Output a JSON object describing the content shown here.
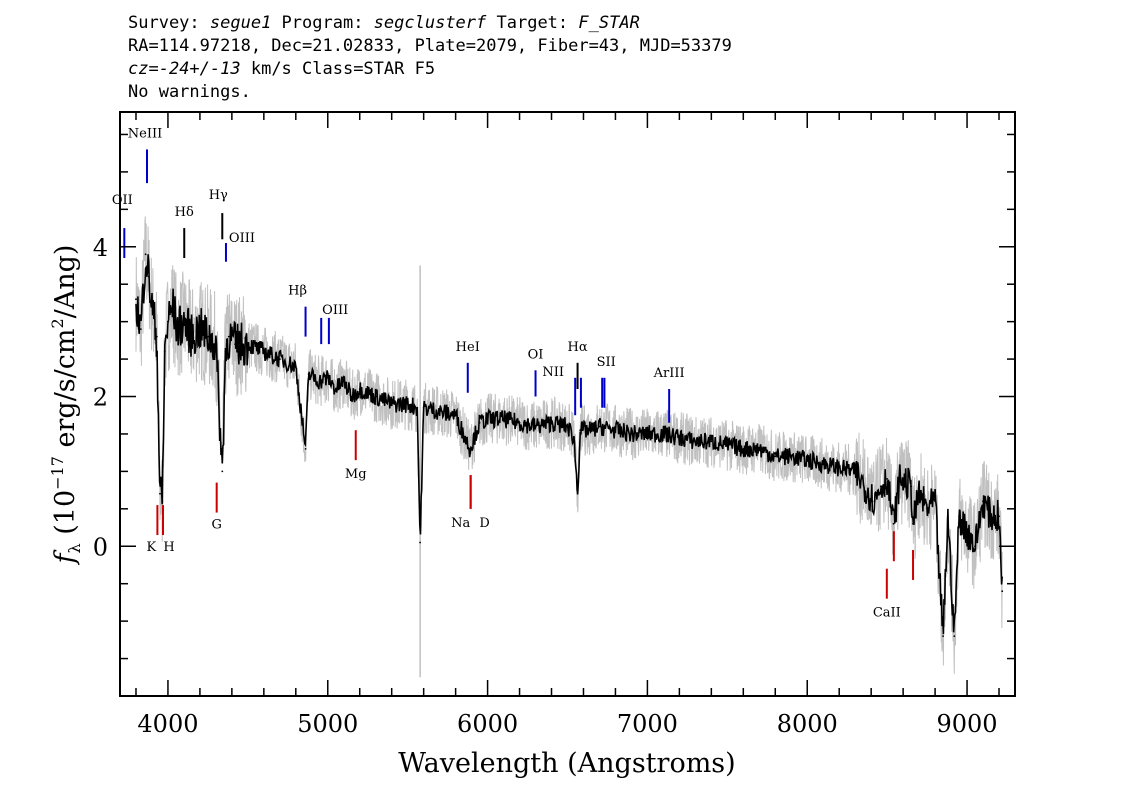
{
  "header": {
    "line1": {
      "survey_label": "Survey: ",
      "survey": "segue1",
      "program_label": " Program: ",
      "program": "segclusterf",
      "target_label": " Target: ",
      "target": "F_STAR"
    },
    "line2": "RA=114.97218, Dec=21.02833, Plate=2079, Fiber=43, MJD=53379",
    "line3": {
      "cz_label": "cz=",
      "cz": "-24+/-13",
      "rest": " km/s Class=STAR F5"
    },
    "line4": "No warnings."
  },
  "chart_data": {
    "type": "line",
    "xlabel": "Wavelength (Angstroms)",
    "ylabel": "fλ (10^-17 erg/s/cm^2/Ang)",
    "xlim": [
      3700,
      9300
    ],
    "ylim": [
      -2.0,
      5.8
    ],
    "x_ticks": [
      4000,
      5000,
      6000,
      7000,
      8000,
      9000
    ],
    "y_ticks": [
      0,
      2,
      4
    ],
    "grid": false,
    "series": [
      {
        "color": "#000000",
        "x": [
          3800,
          3830,
          3860,
          3880,
          3900,
          3930,
          3950,
          3965,
          3980,
          4000,
          4030,
          4060,
          4100,
          4150,
          4200,
          4250,
          4300,
          4340,
          4360,
          4380,
          4420,
          4500,
          4600,
          4700,
          4800,
          4861,
          4880,
          4950,
          5000,
          5050,
          5100,
          5150,
          5200,
          5300,
          5400,
          5500,
          5560,
          5578,
          5600,
          5700,
          5800,
          5890,
          5950,
          6000,
          6100,
          6200,
          6300,
          6400,
          6500,
          6540,
          6563,
          6580,
          6650,
          6700,
          6800,
          6900,
          7000,
          7100,
          7200,
          7300,
          7400,
          7500,
          7600,
          7700,
          7800,
          7900,
          8000,
          8100,
          8200,
          8300,
          8420,
          8460,
          8500,
          8540,
          8580,
          8650,
          8662,
          8700,
          8750,
          8800,
          8850,
          8880,
          8920,
          8950,
          9000,
          9050,
          9100,
          9150,
          9200,
          9220
        ],
        "y": [
          3.3,
          2.9,
          3.9,
          3.6,
          3.2,
          2.8,
          0.7,
          0.6,
          2.6,
          3.0,
          3.2,
          2.9,
          3.0,
          2.8,
          2.9,
          2.8,
          2.7,
          1.0,
          2.6,
          2.8,
          2.7,
          2.7,
          2.6,
          2.5,
          2.4,
          1.3,
          2.3,
          2.2,
          2.25,
          2.1,
          2.2,
          2.0,
          2.1,
          2.0,
          1.9,
          1.9,
          1.85,
          0.05,
          1.85,
          1.8,
          1.75,
          1.3,
          1.65,
          1.7,
          1.7,
          1.65,
          1.6,
          1.65,
          1.6,
          1.45,
          0.7,
          1.55,
          1.55,
          1.6,
          1.55,
          1.5,
          1.5,
          1.5,
          1.45,
          1.4,
          1.4,
          1.35,
          1.3,
          1.3,
          1.2,
          1.2,
          1.15,
          1.1,
          1.05,
          1.0,
          0.6,
          0.8,
          0.9,
          0.3,
          0.9,
          0.8,
          0.3,
          0.7,
          0.5,
          0.6,
          -1.2,
          0.4,
          -1.2,
          0.4,
          0.2,
          0.0,
          0.6,
          0.4,
          0.4,
          -0.6
        ]
      }
    ],
    "line_markers": [
      {
        "label": "OII",
        "wave": 3727,
        "y1": 3.85,
        "y2": 4.25,
        "color": "#0000cc",
        "side": "emission"
      },
      {
        "label": "NeIII",
        "wave": 3869,
        "y1": 4.85,
        "y2": 5.3,
        "color": "#0000cc",
        "side": "emission"
      },
      {
        "label": "Hδ",
        "wave": 4102,
        "y1": 3.85,
        "y2": 4.25,
        "color": "#000000",
        "side": "emission"
      },
      {
        "label": "Hγ",
        "wave": 4340,
        "y1": 4.1,
        "y2": 4.45,
        "color": "#000000",
        "side": "emission"
      },
      {
        "label": "OIII",
        "wave": 4363,
        "y1": 3.8,
        "y2": 4.05,
        "color": "#0000cc",
        "side": "emission"
      },
      {
        "label": "Hβ",
        "wave": 4861,
        "y1": 2.8,
        "y2": 3.2,
        "color": "#0000cc",
        "side": "emission"
      },
      {
        "label": "OIII",
        "wave": 4959,
        "y1": 2.7,
        "y2": 3.05,
        "color": "#0000cc",
        "side": "emission"
      },
      {
        "label": "",
        "wave": 5007,
        "y1": 2.7,
        "y2": 3.05,
        "color": "#0000cc",
        "side": "emission"
      },
      {
        "label": "HeI",
        "wave": 5876,
        "y1": 2.05,
        "y2": 2.45,
        "color": "#0000cc",
        "side": "emission"
      },
      {
        "label": "OI",
        "wave": 6300,
        "y1": 2.0,
        "y2": 2.35,
        "color": "#0000cc",
        "side": "emission"
      },
      {
        "label": "NII",
        "wave": 6548,
        "y1": 1.75,
        "y2": 2.25,
        "color": "#0000cc",
        "side": "emission"
      },
      {
        "label": "Hα",
        "wave": 6563,
        "y1": 2.1,
        "y2": 2.45,
        "color": "#000000",
        "side": "emission"
      },
      {
        "label": "",
        "wave": 6584,
        "y1": 1.85,
        "y2": 2.25,
        "color": "#0000cc",
        "side": "emission"
      },
      {
        "label": "SII",
        "wave": 6717,
        "y1": 1.85,
        "y2": 2.25,
        "color": "#0000cc",
        "side": "emission"
      },
      {
        "label": "",
        "wave": 6731,
        "y1": 1.85,
        "y2": 2.25,
        "color": "#0000cc",
        "side": "emission"
      },
      {
        "label": "ArIII",
        "wave": 7136,
        "y1": 1.65,
        "y2": 2.1,
        "color": "#0000cc",
        "side": "emission"
      },
      {
        "label": "K",
        "wave": 3934,
        "y1": 0.15,
        "y2": 0.55,
        "color": "#cc0000",
        "side": "absorption"
      },
      {
        "label": "H",
        "wave": 3969,
        "y1": 0.15,
        "y2": 0.55,
        "color": "#cc0000",
        "side": "absorption"
      },
      {
        "label": "G",
        "wave": 4305,
        "y1": 0.45,
        "y2": 0.85,
        "color": "#cc0000",
        "side": "absorption"
      },
      {
        "label": "Mg",
        "wave": 5175,
        "y1": 1.15,
        "y2": 1.55,
        "color": "#cc0000",
        "side": "absorption"
      },
      {
        "label": "Na",
        "wave": 5894,
        "y1": 0.5,
        "y2": 0.95,
        "color": "#cc0000",
        "side": "absorption"
      },
      {
        "label": "D",
        "wave": 5894,
        "y1": 0.5,
        "y2": 0.95,
        "color": "#cc0000",
        "side": "absorption"
      },
      {
        "label": "CaII",
        "wave": 8498,
        "y1": -0.7,
        "y2": -0.3,
        "color": "#cc0000",
        "side": "absorption"
      },
      {
        "label": "",
        "wave": 8542,
        "y1": -0.2,
        "y2": 0.2,
        "color": "#cc0000",
        "side": "absorption"
      },
      {
        "label": "",
        "wave": 8662,
        "y1": -0.45,
        "y2": -0.05,
        "color": "#cc0000",
        "side": "absorption"
      }
    ],
    "sky_line": {
      "wave": 5578,
      "ylow": -1.75,
      "yhigh": 3.75,
      "color": "#c0c0c0"
    }
  }
}
